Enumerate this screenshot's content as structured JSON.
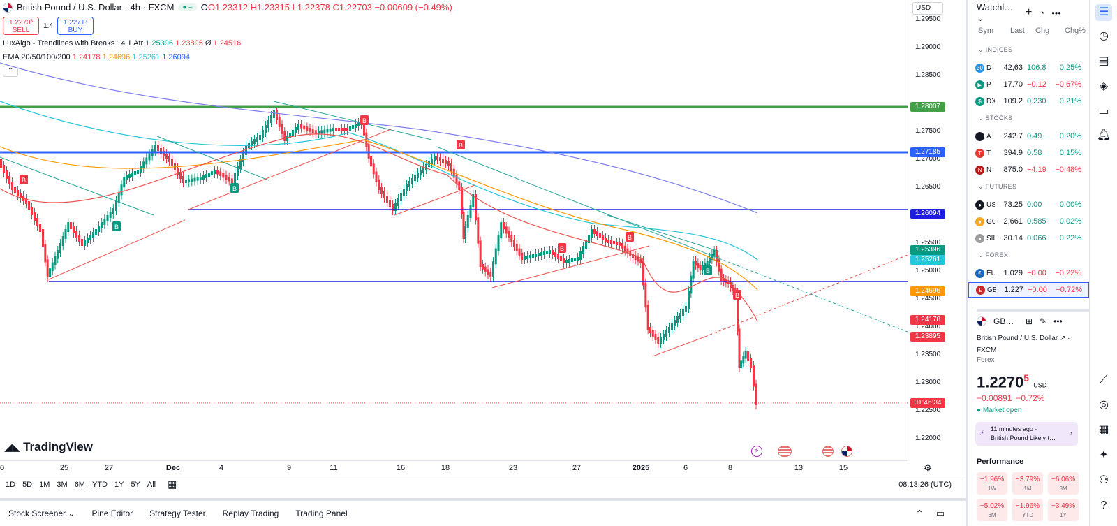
{
  "header": {
    "title": "British Pound / U.S. Dollar · 4h · FXCM",
    "ohlc": {
      "o": "O1.23312",
      "h": "H1.23315",
      "l": "L1.22378",
      "c": "C1.22703",
      "chg": "−0.00609 (−0.49%)"
    },
    "sell": {
      "price": "1.2270³",
      "label": "SELL"
    },
    "spread": "1.4",
    "buy": {
      "price": "1.2271⁷",
      "label": "BUY"
    }
  },
  "indicators": [
    {
      "name": "LuxAlgo - Trendlines with Breaks 14 1 Atr",
      "values": [
        "1.25396",
        "1.23895",
        "Ø",
        "1.24516"
      ],
      "colors": [
        "#089981",
        "#f23645",
        "#131722",
        "#f23645"
      ]
    },
    {
      "name": "EMA 20/50/100/200",
      "values": [
        "1.24178",
        "1.24696",
        "1.25261",
        "1.26094"
      ],
      "colors": [
        "#f23645",
        "#ff9800",
        "#26c6da",
        "#2962ff"
      ]
    }
  ],
  "price_scale": {
    "currency": "USD",
    "ticks": [
      "1.29500",
      "1.29000",
      "1.28500",
      "1.27500",
      "1.27000",
      "1.26500",
      "1.26000",
      "1.25500",
      "1.25000",
      "1.24500",
      "1.24000",
      "1.23500",
      "1.23000",
      "1.22500",
      "1.22000"
    ],
    "labels": [
      {
        "text": "1.28007",
        "color": "#43a047"
      },
      {
        "text": "1.27185",
        "color": "#2962ff"
      },
      {
        "text": "1.26094",
        "color": "#1e1ee0"
      },
      {
        "text": "1.25396",
        "color": "#089981"
      },
      {
        "text": "1.25261",
        "color": "#26c6da"
      },
      {
        "text": "1.24696",
        "color": "#ff9800"
      },
      {
        "text": "1.24178",
        "color": "#f23645"
      },
      {
        "text": "1.23895",
        "color": "#f23645"
      },
      {
        "text": "01:46:34",
        "color": "#f23645"
      }
    ]
  },
  "time_scale": {
    "ticks": [
      {
        "label": "0",
        "bold": false
      },
      {
        "label": "25",
        "bold": false
      },
      {
        "label": "27",
        "bold": false
      },
      {
        "label": "Dec",
        "bold": true
      },
      {
        "label": "4",
        "bold": false
      },
      {
        "label": "9",
        "bold": false
      },
      {
        "label": "11",
        "bold": false
      },
      {
        "label": "16",
        "bold": false
      },
      {
        "label": "18",
        "bold": false
      },
      {
        "label": "23",
        "bold": false
      },
      {
        "label": "27",
        "bold": false
      },
      {
        "label": "2025",
        "bold": true
      },
      {
        "label": "6",
        "bold": false
      },
      {
        "label": "8",
        "bold": false
      },
      {
        "label": "13",
        "bold": false
      },
      {
        "label": "15",
        "bold": false
      }
    ]
  },
  "logo": "TradingView",
  "ranges": [
    "1D",
    "5D",
    "1M",
    "3M",
    "6M",
    "YTD",
    "1Y",
    "5Y",
    "All"
  ],
  "clock": "08:13:26 (UTC)",
  "bottom_tabs": [
    "Stock Screener",
    "Pine Editor",
    "Strategy Tester",
    "Replay Trading",
    "Trading Panel"
  ],
  "watchlist": {
    "title": "Watchl…",
    "columns": [
      "Sym",
      "Last",
      "Chg",
      "Chg%"
    ],
    "sections": [
      {
        "name": "INDICES",
        "rows": [
          {
            "icon": "30",
            "icon_color": "#2196f3",
            "sym": "D",
            "last": "42,63",
            "chg": "106.8",
            "chgp": "0.25%",
            "dir": "pos"
          },
          {
            "icon": "▶",
            "icon_color": "#089981",
            "sym": "P",
            "last": "17.70",
            "chg": "−0.12",
            "chgp": "−0.67%",
            "dir": "neg"
          },
          {
            "icon": "$",
            "icon_color": "#089981",
            "sym": "DX",
            "last": "109.2",
            "chg": "0.230",
            "chgp": "0.21%",
            "dir": "pos"
          }
        ]
      },
      {
        "name": "STOCKS",
        "rows": [
          {
            "icon": "",
            "icon_color": "#131722",
            "sym": "A",
            "last": "242.7",
            "chg": "0.49",
            "chgp": "0.20%",
            "dir": "pos"
          },
          {
            "icon": "T",
            "icon_color": "#e53935",
            "sym": "T",
            "last": "394.9",
            "chg": "0.58",
            "chgp": "0.15%",
            "dir": "pos"
          },
          {
            "icon": "N",
            "icon_color": "#b71c1c",
            "sym": "N",
            "last": "875.0",
            "chg": "−4.19",
            "chgp": "−0.48%",
            "dir": "neg"
          }
        ]
      },
      {
        "name": "FUTURES",
        "rows": [
          {
            "icon": "●",
            "icon_color": "#131722",
            "sym": "US",
            "last": "73.25",
            "chg": "0.00",
            "chgp": "0.00%",
            "dir": "pos"
          },
          {
            "icon": "●",
            "icon_color": "#f9a825",
            "sym": "GC",
            "last": "2,661",
            "chg": "0.585",
            "chgp": "0.02%",
            "dir": "pos"
          },
          {
            "icon": "●",
            "icon_color": "#9e9e9e",
            "sym": "SIL",
            "last": "30.14",
            "chg": "0.066",
            "chgp": "0.22%",
            "dir": "pos"
          }
        ]
      },
      {
        "name": "FOREX",
        "rows": [
          {
            "icon": "€",
            "icon_color": "#1565c0",
            "sym": "EU",
            "last": "1.029",
            "chg": "−0.00",
            "chgp": "−0.22%",
            "dir": "neg"
          },
          {
            "icon": "£",
            "icon_color": "#c62828",
            "sym": "GE",
            "last": "1.227",
            "chg": "−0.00",
            "chgp": "−0.72%",
            "dir": "neg",
            "selected": true
          }
        ]
      }
    ]
  },
  "detail": {
    "sym": "GB…",
    "name": "British Pound / U.S. Dollar",
    "exchange": "FXCM",
    "market": "Forex",
    "price_main": "1.2270",
    "price_sup": "5",
    "currency": "USD",
    "change": "−0.00891",
    "change_pct": "−0.72%",
    "status": "Market open",
    "news_time": "11 minutes ago ·",
    "news_title": "British Pound Likely t…",
    "perf_title": "Performance",
    "perf": [
      {
        "value": "−1.96%",
        "period": "1W"
      },
      {
        "value": "−3.79%",
        "period": "1M"
      },
      {
        "value": "−6.06%",
        "period": "3M"
      },
      {
        "value": "−5.02%",
        "period": "6M"
      },
      {
        "value": "−1.96%",
        "period": "YTD"
      },
      {
        "value": "−3.49%",
        "period": "1Y"
      }
    ]
  }
}
